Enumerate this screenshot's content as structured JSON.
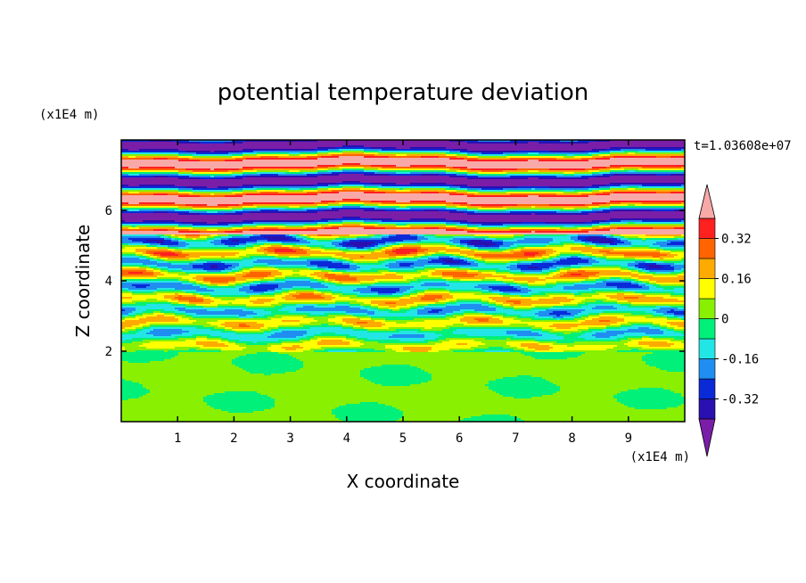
{
  "chart_data": {
    "type": "heatmap",
    "title": "potential temperature deviation",
    "xlabel": "X coordinate",
    "ylabel": "Z coordinate",
    "x_unit": "(x1E4 m)",
    "y_unit": "(x1E4 m)",
    "time_label": "t=1.03608e+07",
    "xlim": [
      0,
      10
    ],
    "ylim": [
      0,
      8
    ],
    "x_ticks": [
      "1",
      "2",
      "3",
      "4",
      "5",
      "6",
      "7",
      "8",
      "9"
    ],
    "y_ticks": [
      "2",
      "4",
      "6"
    ],
    "x_tick_values": [
      1,
      2,
      3,
      4,
      5,
      6,
      7,
      8,
      9
    ],
    "y_tick_values": [
      2,
      4,
      6
    ],
    "colorbar": {
      "levels": [
        -0.4,
        -0.32,
        -0.24,
        -0.16,
        -0.08,
        0,
        0.08,
        0.16,
        0.24,
        0.32,
        0.4
      ],
      "labels": [
        "0.32",
        "0.16",
        "0",
        "-0.16",
        "-0.32"
      ],
      "label_values": [
        0.32,
        0.16,
        0,
        -0.16,
        -0.32
      ],
      "colors": [
        "#7a1ea8",
        "#2a10b0",
        "#0a2ad8",
        "#1f8ef0",
        "#22e6e6",
        "#00f07a",
        "#88f000",
        "#ffff00",
        "#ffaa00",
        "#ff6400",
        "#ff2020",
        "#f9a8a8"
      ],
      "over_color": "#f9a8a8",
      "under_color": "#7a1ea8"
    }
  }
}
